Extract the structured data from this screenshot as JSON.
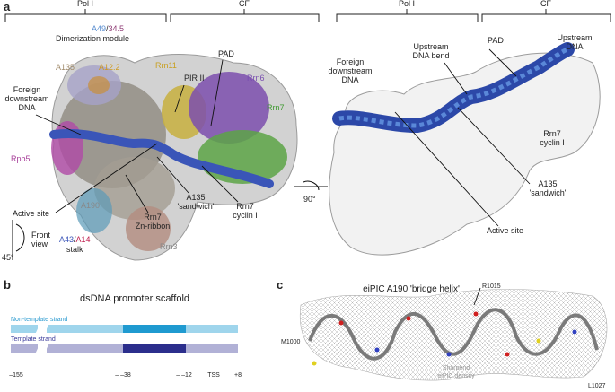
{
  "panel_a": {
    "letter": "a",
    "brackets": [
      "Pol I",
      "CF",
      "Pol I",
      "CF"
    ],
    "left": {
      "a49": "A49",
      "slash1": "/",
      "a34": "34.5",
      "dimerization": "Dimerization module",
      "a135": "A135",
      "a12": "A12.2",
      "rrn11": "Rrn11",
      "pir2": "PIR II",
      "pad": "PAD",
      "rrn6": "Rrn6",
      "foreign_dna": [
        "Foreign",
        "downstream",
        "DNA"
      ],
      "rrn7": "Rrn7",
      "rpb5": "Rpb5",
      "active_site": "Active site",
      "sandwich": [
        "A135",
        "'sandwich'"
      ],
      "cyclin": [
        "Rrn7",
        "cyclin I"
      ],
      "zn": [
        "Rrn7",
        "Zn-ribbon"
      ],
      "a190": "A190",
      "front_view": [
        "Front",
        "view"
      ],
      "rot45": "45°",
      "a43": "A43",
      "slash2": "/",
      "a14": "A14",
      "stalk": "stalk",
      "rrn3": "Rrn3",
      "rot90": "90°"
    },
    "right": {
      "foreign_dna": [
        "Foreign",
        "downstream",
        "DNA"
      ],
      "upstream_bend": [
        "Upstream",
        "DNA bend"
      ],
      "pad": "PAD",
      "upstream_dna": [
        "Upstream",
        "DNA"
      ],
      "cyclin": [
        "Rrn7",
        "cyclin I"
      ],
      "sandwich": [
        "A135",
        "'sandwich'"
      ],
      "active_site": "Active site"
    }
  },
  "panel_b": {
    "letter": "b",
    "title": "dsDNA promoter scaffold",
    "non_template": "Non-template strand",
    "template": "Template strand",
    "positions": [
      "–155",
      "– –38",
      "– –12",
      "TSS",
      "+8"
    ]
  },
  "panel_c": {
    "letter": "c",
    "title": "eiPIC A190 'bridge helix'",
    "r1015": "R1015",
    "m1000": "M1000",
    "density": [
      "Sharpend",
      "eiPIC density"
    ],
    "l1027": "L1027"
  }
}
